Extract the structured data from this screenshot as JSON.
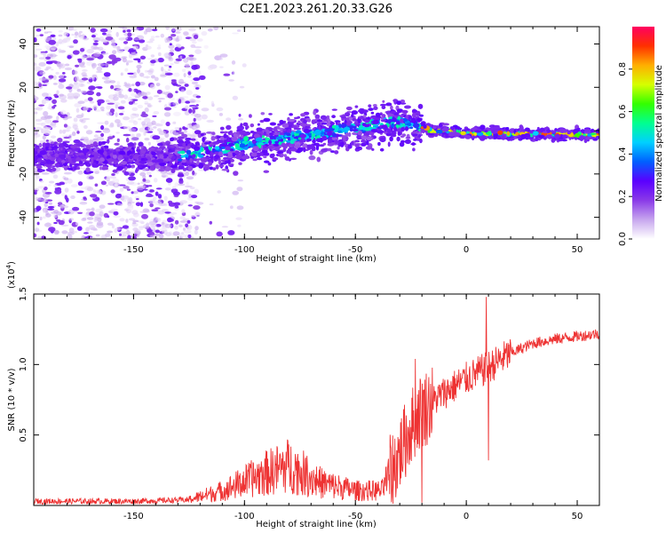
{
  "title": "C2E1.2023.261.20.33.G26",
  "chart_data": [
    {
      "type": "heatmap",
      "xlabel": "Height of straight line (km)",
      "ylabel": "Frequency (Hz)",
      "xlim": [
        -195,
        60
      ],
      "ylim": [
        -50,
        48
      ],
      "xticks": [
        -150,
        -100,
        -50,
        0,
        50
      ],
      "yticks": [
        -40,
        -20,
        0,
        20,
        40
      ],
      "colorbar": {
        "label": "Normalized spectral amplitude",
        "range": [
          0.0,
          1.0
        ],
        "ticks": [
          0.0,
          0.2,
          0.4,
          0.6,
          0.8
        ],
        "tick_labels": [
          "0.0",
          "0.2",
          "0.4",
          "0.6",
          "0.8"
        ],
        "colormap": "rainbow",
        "stops": [
          "#ffffff",
          "#c7a6ee",
          "#8a3ae8",
          "#5a00ff",
          "#0060ff",
          "#00d0ff",
          "#00ff90",
          "#33ff00",
          "#d6ff00",
          "#ffae00",
          "#ff3000",
          "#ff0060"
        ]
      },
      "ridge_frequency_trend": {
        "x": [
          -130,
          -100,
          -70,
          -50,
          -35,
          -25,
          -15,
          0,
          60
        ],
        "y": [
          -12,
          -6,
          -2,
          1,
          4,
          3,
          0,
          -1,
          -2
        ]
      }
    },
    {
      "type": "line",
      "xlabel": "Height of straight line (km)",
      "ylabel": "SNR (10 * v/v)",
      "y_scale_label": "(x10",
      "y_scale_exp": "4",
      "y_scale_close": ")",
      "xlim": [
        -195,
        60
      ],
      "ylim": [
        0,
        1.5
      ],
      "xticks": [
        -150,
        -100,
        -50,
        0,
        50
      ],
      "yticks": [
        0.5,
        1.0,
        1.5
      ],
      "ytick_labels": [
        "0.5",
        "1.0",
        "1.5"
      ],
      "series_color": "#ee3333",
      "trend": {
        "x": [
          -195,
          -150,
          -125,
          -110,
          -90,
          -80,
          -65,
          -50,
          -38,
          -32,
          -25,
          -22,
          -18,
          -10,
          0,
          10,
          20,
          30,
          40,
          50,
          60
        ],
        "y": [
          0.03,
          0.03,
          0.04,
          0.1,
          0.22,
          0.27,
          0.15,
          0.1,
          0.1,
          0.3,
          0.55,
          0.65,
          0.7,
          0.8,
          0.9,
          0.98,
          1.08,
          1.15,
          1.18,
          1.2,
          1.22
        ]
      },
      "spikes": [
        {
          "x": -23,
          "y": 1.04
        },
        {
          "x": -20,
          "y": 0.02
        },
        {
          "x": 9,
          "y": 1.48
        },
        {
          "x": 10,
          "y": 0.32
        }
      ]
    }
  ]
}
